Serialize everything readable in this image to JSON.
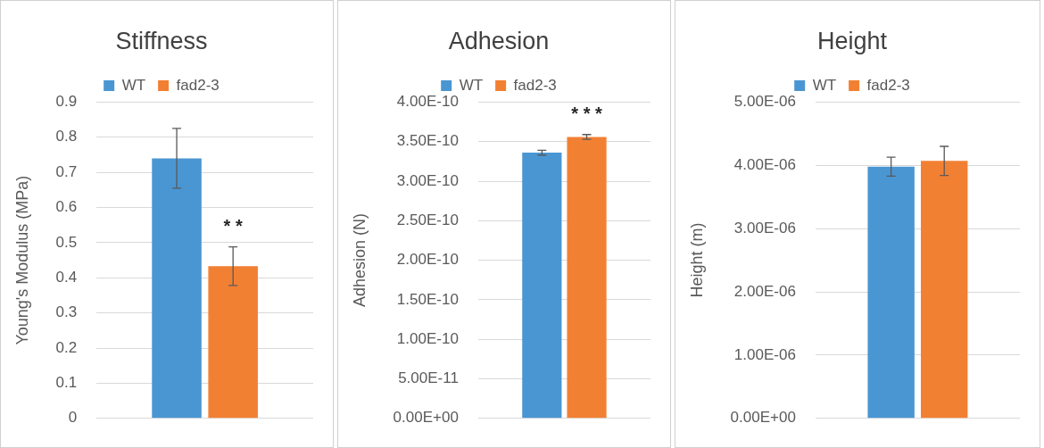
{
  "chart_data": [
    {
      "type": "bar",
      "title": "Stiffness",
      "ylabel": "Young's Modulus (MPa)",
      "categories": [
        null
      ],
      "series": [
        {
          "name": "WT",
          "color": "#4a96d2",
          "values": [
            0.74
          ],
          "errors": [
            0.085
          ]
        },
        {
          "name": "fad2-3",
          "color": "#f28033",
          "values": [
            0.433
          ],
          "errors": [
            0.055
          ]
        }
      ],
      "ylim": [
        0,
        0.9
      ],
      "yticks": [
        0,
        0.1,
        0.2,
        0.3,
        0.4,
        0.5,
        0.6,
        0.7,
        0.8,
        0.9
      ],
      "grid": "y",
      "legend": "top",
      "annotations": [
        "* *"
      ]
    },
    {
      "type": "bar",
      "title": "Adhesion",
      "ylabel": "Adhesion (N)",
      "categories": [
        null
      ],
      "series": [
        {
          "name": "WT",
          "color": "#4a96d2",
          "values": [
            3.36e-10
          ],
          "errors": [
            3e-12
          ]
        },
        {
          "name": "fad2-3",
          "color": "#f28033",
          "values": [
            3.56e-10
          ],
          "errors": [
            3e-12
          ]
        }
      ],
      "ylim": [
        0,
        4e-10
      ],
      "yticks": [
        {
          "value": 0,
          "label": "0.00E+00"
        },
        {
          "value": 5e-11,
          "label": "5.00E-11"
        },
        {
          "value": 1e-10,
          "label": "1.00E-10"
        },
        {
          "value": 1.5e-10,
          "label": "1.50E-10"
        },
        {
          "value": 2e-10,
          "label": "2.00E-10"
        },
        {
          "value": 2.5e-10,
          "label": "2.50E-10"
        },
        {
          "value": 3e-10,
          "label": "3.00E-10"
        },
        {
          "value": 3.5e-10,
          "label": "3.50E-10"
        },
        {
          "value": 4e-10,
          "label": "4.00E-10"
        }
      ],
      "grid": "y",
      "legend": "top",
      "annotations": [
        "* * *"
      ]
    },
    {
      "type": "bar",
      "title": "Height",
      "ylabel": "Height (m)",
      "categories": [
        null
      ],
      "series": [
        {
          "name": "WT",
          "color": "#4a96d2",
          "values": [
            3.98e-06
          ],
          "errors": [
            1.5e-07
          ]
        },
        {
          "name": "fad2-3",
          "color": "#f28033",
          "values": [
            4.07e-06
          ],
          "errors": [
            2.3e-07
          ]
        }
      ],
      "ylim": [
        0,
        5e-06
      ],
      "yticks": [
        {
          "value": 0,
          "label": "0.00E+00"
        },
        {
          "value": 1e-06,
          "label": "1.00E-06"
        },
        {
          "value": 2e-06,
          "label": "2.00E-06"
        },
        {
          "value": 3e-06,
          "label": "3.00E-06"
        },
        {
          "value": 4e-06,
          "label": "4.00E-06"
        },
        {
          "value": 5e-06,
          "label": "5.00E-06"
        }
      ],
      "grid": "y",
      "legend": "top"
    }
  ]
}
